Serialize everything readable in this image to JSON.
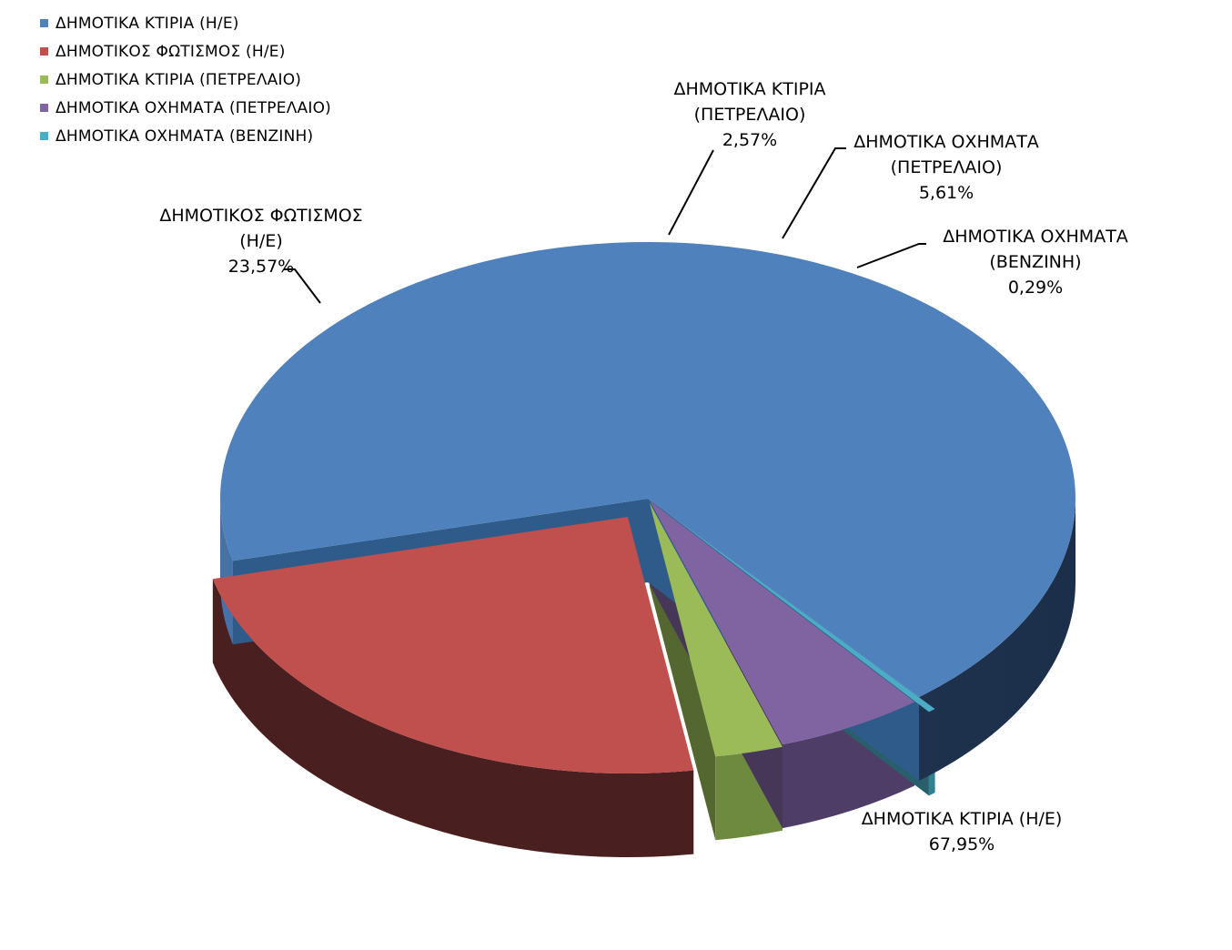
{
  "chart_data": {
    "type": "pie",
    "title": "",
    "legend_position": "top-left",
    "series": [
      {
        "name": "ΔΗΜΟΤΙΚΑ ΚΤΙΡΙΑ (Η/Ε)",
        "value": 67.95,
        "label_lines": [
          "ΔΗΜΟΤΙΚΑ ΚΤΙΡΙΑ (Η/Ε)"
        ],
        "percent_text": "67,95%",
        "color": "#4F81BD"
      },
      {
        "name": "ΔΗΜΟΤΙΚΟΣ ΦΩΤΙΣΜΟΣ (Η/Ε)",
        "value": 23.57,
        "label_lines": [
          "ΔΗΜΟΤΙΚΟΣ ΦΩΤΙΣΜΟΣ",
          "(Η/Ε)"
        ],
        "percent_text": "23,57%",
        "color": "#C0504D"
      },
      {
        "name": "ΔΗΜΟΤΙΚΑ ΚΤΙΡΙΑ (ΠΕΤΡΕΛΑΙΟ)",
        "value": 2.57,
        "label_lines": [
          "ΔΗΜΟΤΙΚΑ ΚΤΙΡΙΑ",
          "(ΠΕΤΡΕΛΑΙΟ)"
        ],
        "percent_text": "2,57%",
        "color": "#9BBB59"
      },
      {
        "name": "ΔΗΜΟΤΙΚΑ ΟΧΗΜΑΤΑ (ΠΕΤΡΕΛΑΙΟ)",
        "value": 5.61,
        "label_lines": [
          "ΔΗΜΟΤΙΚΑ ΟΧΗΜΑΤΑ",
          "(ΠΕΤΡΕΛΑΙΟ)"
        ],
        "percent_text": "5,61%",
        "color": "#8064A2"
      },
      {
        "name": "ΔΗΜΟΤΙΚΑ ΟΧΗΜΑΤΑ (ΒΕΝΖΙΝΗ)",
        "value": 0.29,
        "label_lines": [
          "ΔΗΜΟΤΙΚΑ ΟΧΗΜΑΤΑ",
          "(ΒΕΝΖΙΝΗ)"
        ],
        "percent_text": "0,29%",
        "color": "#4BACC6"
      }
    ]
  }
}
